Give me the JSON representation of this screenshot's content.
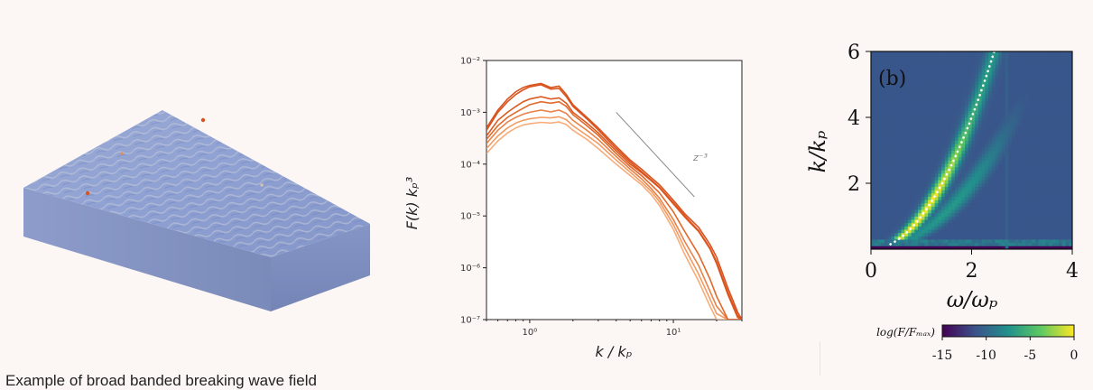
{
  "caption": "Example of broad banded breaking wave field",
  "colors": {
    "background": "#fcf6f4",
    "ocean_top": "#8ea2d2",
    "ocean_side": "#7d8fc0",
    "crest_highlight": "#d9c7a9",
    "series_dark": "#d9531e",
    "series_light": "#f7a56d"
  },
  "chart_data": [
    {
      "type": "line",
      "xlabel": "k / kₚ",
      "ylabel": "F(k) kₚ³",
      "xscale": "log",
      "yscale": "log",
      "xlim": [
        0.5,
        30
      ],
      "ylim": [
        1e-07,
        0.01
      ],
      "x_ticks": [
        {
          "value": 1,
          "label": "10⁰"
        },
        {
          "value": 10,
          "label": "10¹"
        }
      ],
      "y_ticks": [
        {
          "value": 0.01,
          "label": "10⁻²"
        },
        {
          "value": 0.001,
          "label": "10⁻³"
        },
        {
          "value": 0.0001,
          "label": "10⁻⁴"
        },
        {
          "value": 1e-05,
          "label": "10⁻⁵"
        },
        {
          "value": 1e-06,
          "label": "10⁻⁶"
        },
        {
          "value": 1e-07,
          "label": "10⁻⁷"
        }
      ],
      "annotation": {
        "label": "z⁻³",
        "line": {
          "x": [
            4,
            14
          ],
          "y": [
            0.001,
            2.34e-05
          ]
        }
      },
      "x": [
        0.5,
        0.6,
        0.7,
        0.8,
        0.9,
        1.0,
        1.2,
        1.4,
        1.6,
        1.8,
        2.0,
        2.5,
        3.0,
        4.0,
        5.0,
        6.0,
        7.0,
        8.0,
        10.0,
        12.0,
        15.0,
        18.0,
        20.0,
        24.0,
        28.0,
        30.0
      ],
      "series": [
        {
          "color": "#d9531e",
          "values": [
            0.0005,
            0.0011,
            0.0018,
            0.0025,
            0.003,
            0.0033,
            0.0036,
            0.003,
            0.0032,
            0.0022,
            0.0014,
            0.0008,
            0.0005,
            0.00022,
            0.00012,
            8e-05,
            5.5e-05,
            4e-05,
            2e-05,
            1.1e-05,
            6e-06,
            2.8e-06,
            1.6e-06,
            4e-07,
            1.4e-07,
            1e-07
          ]
        },
        {
          "color": "#d9531e",
          "values": [
            0.00045,
            0.001,
            0.0016,
            0.0022,
            0.0027,
            0.0031,
            0.0034,
            0.0028,
            0.0029,
            0.002,
            0.0013,
            0.00075,
            0.00046,
            0.0002,
            0.00011,
            7.2e-05,
            5e-05,
            3.6e-05,
            1.8e-05,
            1e-05,
            5.2e-06,
            2.4e-06,
            1.3e-06,
            3.3e-07,
            1.2e-07,
            1e-07
          ]
        },
        {
          "color": "#dc5a22",
          "values": [
            0.00035,
            0.0007,
            0.001,
            0.0013,
            0.0016,
            0.0018,
            0.002,
            0.0018,
            0.0019,
            0.0015,
            0.001,
            0.00062,
            0.0004,
            0.00018,
            0.0001,
            6.8e-05,
            4.8e-05,
            3.5e-05,
            1.7e-05,
            9.5e-06,
            5e-06,
            2.3e-06,
            1.2e-06,
            3e-07,
            1.1e-07,
            1e-07
          ]
        },
        {
          "color": "#e06a2c",
          "values": [
            0.0003,
            0.00055,
            0.0008,
            0.001,
            0.0012,
            0.0014,
            0.0016,
            0.0015,
            0.0016,
            0.0013,
            0.0009,
            0.00055,
            0.00036,
            0.00016,
            9e-05,
            6e-05,
            4e-05,
            2.8e-05,
            1.2e-05,
            5e-06,
            1.8e-06,
            6e-07,
            2.8e-07,
            1e-07,
            1e-07,
            1e-07
          ]
        },
        {
          "color": "#e98248",
          "values": [
            0.00025,
            0.00045,
            0.00065,
            0.0008,
            0.00092,
            0.001,
            0.0011,
            0.00102,
            0.0011,
            0.00095,
            0.0007,
            0.00045,
            0.0003,
            0.00014,
            8e-05,
            5.2e-05,
            3.4e-05,
            2.2e-05,
            8.5e-06,
            3.2e-06,
            1.1e-06,
            3.5e-07,
            1.8e-07,
            1e-07,
            1e-07,
            1e-07
          ]
        },
        {
          "color": "#f29b63",
          "values": [
            0.0002,
            0.00035,
            0.0005,
            0.00062,
            0.0007,
            0.00075,
            0.0008,
            0.00078,
            0.00082,
            0.00072,
            0.00055,
            0.00036,
            0.00025,
            0.00012,
            7e-05,
            4.5e-05,
            3e-05,
            1.9e-05,
            6.8e-06,
            2.4e-06,
            7.5e-07,
            2.5e-07,
            1.3e-07,
            1e-07,
            1e-07,
            1e-07
          ]
        },
        {
          "color": "#f7ad7a",
          "values": [
            0.00016,
            0.00028,
            0.0004,
            0.0005,
            0.00057,
            0.0006,
            0.00064,
            0.00062,
            0.00065,
            0.00058,
            0.00045,
            0.0003,
            0.0002,
            0.0001,
            6e-05,
            4e-05,
            2.6e-05,
            1.6e-05,
            5.5e-06,
            1.8e-06,
            5.5e-07,
            1.8e-07,
            1e-07,
            1e-07,
            1e-07,
            1e-07
          ]
        }
      ]
    },
    {
      "type": "heatmap",
      "panel_label": "(b)",
      "xlabel": "ω/ωₚ",
      "ylabel": "k/kₚ",
      "xlim": [
        0,
        4
      ],
      "ylim": [
        0,
        6
      ],
      "x_ticks": [
        0,
        2,
        4
      ],
      "y_ticks": [
        2,
        4,
        6
      ],
      "colorbar": {
        "label": "log(F/Fₘₐₓ)",
        "ticks": [
          -15,
          -10,
          -5,
          0
        ],
        "range": [
          -15,
          0
        ],
        "stops": [
          "#440154",
          "#3b528b",
          "#21918c",
          "#5ec962",
          "#fde725"
        ]
      },
      "dispersion_curve": {
        "relation": "k = ω²",
        "style": "dotted",
        "color": "#ffffff"
      }
    }
  ]
}
